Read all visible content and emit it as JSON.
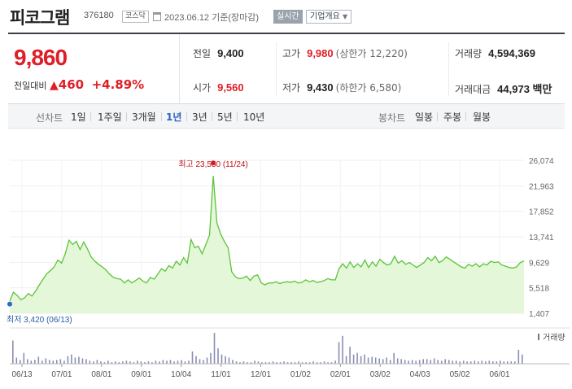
{
  "header": {
    "company": "피코그램",
    "code": "376180",
    "market": "코스닥",
    "date_note": "2023.06.12 기준(장마감)",
    "realtime_label": "실시간",
    "overview_label": "기업개요",
    "icon_calendar": "calendar-icon",
    "icon_caret": "caret-down-icon"
  },
  "summary": {
    "price": "9,860",
    "change_label": "전일대비",
    "change_amount": "460",
    "change_pct": "+4.89%",
    "up_color": "#e01e26",
    "icon_up": "triangle-up-icon",
    "prev_close": {
      "label": "전일",
      "value": "9,400"
    },
    "open": {
      "label": "시가",
      "value": "9,560"
    },
    "high": {
      "label": "고가",
      "value": "9,980",
      "limit_label": "(상한가 12,220)"
    },
    "low": {
      "label": "저가",
      "value": "9,430",
      "limit_label": "(하한가 6,580)"
    },
    "volume": {
      "label": "거래량",
      "value": "4,594,369"
    },
    "trade_value": {
      "label": "거래대금",
      "value": "44,973 백만"
    }
  },
  "tabs": {
    "period_label": "선차트",
    "periods": [
      "1일",
      "1주일",
      "3개월",
      "1년",
      "3년",
      "5년",
      "10년"
    ],
    "selected_period": "1년",
    "candle_label": "봉차트",
    "candles": [
      "일봉",
      "주봉",
      "월봉"
    ]
  },
  "chart_data": {
    "type": "area",
    "x_ticks": [
      "06/13",
      "07/01",
      "08/01",
      "09/01",
      "10/04",
      "11/01",
      "12/01",
      "01/02",
      "02/01",
      "03/02",
      "04/03",
      "05/02",
      "06/01"
    ],
    "y_ticks": [
      "26,074",
      "21,963",
      "17,852",
      "13,741",
      "9,629",
      "5,518",
      "1,407"
    ],
    "ylim": [
      1407,
      26074
    ],
    "high_label": "최고 23,550 (11/24)",
    "low_label": "최저 3,420 (06/13)",
    "volume_label": "거래량",
    "line_color": "#5cc43a",
    "fill_color": "#e4f7d8",
    "marker_high_color": "#e01e26",
    "marker_low_color": "#2a6ac8",
    "values": [
      3420,
      4800,
      4300,
      3600,
      3900,
      4600,
      4200,
      5000,
      6000,
      6900,
      7800,
      8300,
      8900,
      10000,
      9500,
      11000,
      13200,
      12500,
      13000,
      11700,
      12900,
      11800,
      10500,
      9800,
      9300,
      8900,
      8400,
      7700,
      7200,
      7000,
      6900,
      6300,
      6800,
      6300,
      6700,
      7100,
      6600,
      6300,
      7200,
      6900,
      7700,
      8600,
      8200,
      9100,
      8700,
      9800,
      9200,
      10400,
      9500,
      13300,
      12000,
      12200,
      11000,
      12500,
      14000,
      23550,
      16000,
      14200,
      13000,
      12000,
      8100,
      7300,
      7000,
      7100,
      7400,
      6700,
      7400,
      7600,
      6300,
      6000,
      6300,
      6300,
      6500,
      6200,
      6400,
      6500,
      6400,
      6600,
      6300,
      6400,
      6800,
      6500,
      6700,
      6400,
      6500,
      6700,
      7000,
      6800,
      6800,
      8600,
      9400,
      8700,
      9700,
      8800,
      9400,
      8900,
      10000,
      8800,
      9700,
      9000,
      10100,
      9600,
      9200,
      9400,
      10600,
      9500,
      9900,
      9300,
      9600,
      9200,
      8800,
      9200,
      9600,
      10400,
      9900,
      10600,
      9600,
      9900,
      10500,
      10100,
      9700,
      9300,
      8900,
      8700,
      9300,
      9000,
      9400,
      8900,
      9400,
      9200,
      9800,
      9600,
      9700,
      9200,
      9000,
      8800,
      8700,
      8900,
      9600,
      9860
    ],
    "volumes": [
      30,
      8,
      5,
      14,
      6,
      4,
      5,
      9,
      4,
      7,
      5,
      4,
      5,
      6,
      4,
      10,
      12,
      8,
      9,
      7,
      6,
      4,
      3,
      5,
      3,
      2,
      4,
      2,
      3,
      2,
      3,
      4,
      3,
      2,
      4,
      3,
      2,
      3,
      2,
      4,
      3,
      5,
      4,
      5,
      3,
      4,
      5,
      3,
      4,
      16,
      10,
      6,
      5,
      8,
      14,
      40,
      20,
      12,
      10,
      8,
      5,
      3,
      2,
      3,
      2,
      2,
      4,
      3,
      2,
      2,
      2,
      3,
      2,
      2,
      3,
      2,
      2,
      2,
      3,
      2,
      2,
      2,
      3,
      2,
      2,
      3,
      2,
      2,
      4,
      28,
      36,
      10,
      22,
      12,
      14,
      10,
      12,
      8,
      9,
      8,
      7,
      6,
      8,
      5,
      14,
      7,
      6,
      5,
      4,
      5,
      4,
      5,
      6,
      6,
      5,
      7,
      5,
      4,
      6,
      5,
      4,
      4,
      3,
      4,
      3,
      3,
      4,
      3,
      4,
      3,
      4,
      3,
      3,
      4,
      3,
      3,
      3,
      3,
      18,
      12
    ]
  }
}
